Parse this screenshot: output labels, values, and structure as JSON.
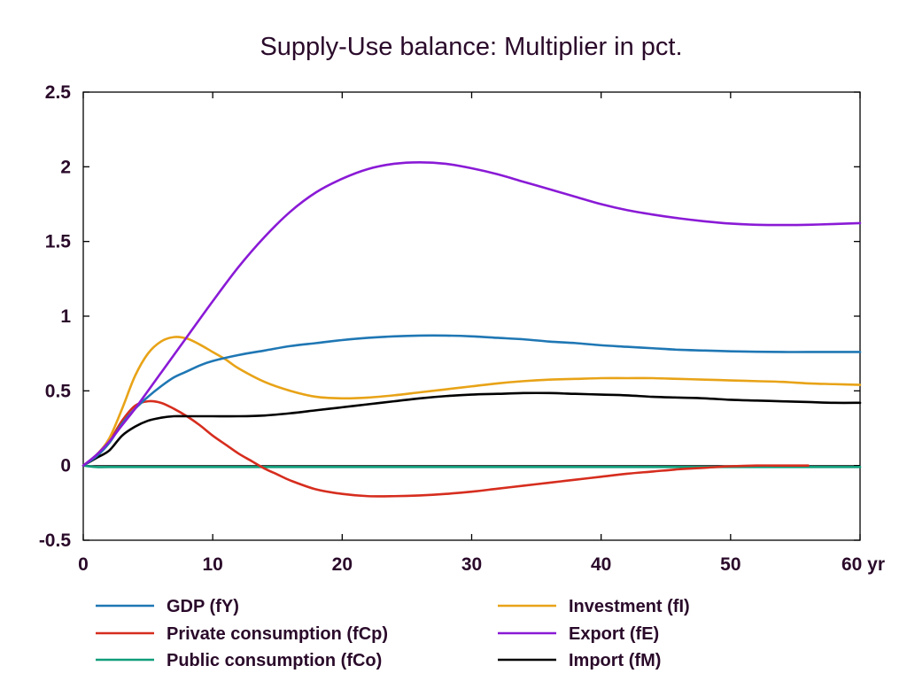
{
  "chart_data": {
    "type": "line",
    "title": "Supply-Use balance: Multiplier in pct.",
    "xlabel": "",
    "ylabel": "",
    "x_unit_label": "yr",
    "xlim": [
      0,
      60
    ],
    "ylim": [
      -0.5,
      2.5
    ],
    "x_ticks": [
      0,
      10,
      20,
      30,
      40,
      50,
      60
    ],
    "x_tick_labels": [
      "0",
      "10",
      "20",
      "30",
      "40",
      "50",
      "60 yr"
    ],
    "y_ticks": [
      -0.5,
      0,
      0.5,
      1,
      1.5,
      2,
      2.5
    ],
    "y_tick_labels": [
      "-0.5",
      "0",
      "0.5",
      "1",
      "1.5",
      "2",
      "2.5"
    ],
    "grid": false,
    "legend_position": "bottom",
    "series": [
      {
        "name": "GDP (fY)",
        "color": "#1f77b4",
        "x": [
          0,
          1,
          2,
          3,
          4,
          5,
          6,
          7,
          8,
          9,
          10,
          12,
          14,
          16,
          18,
          20,
          22,
          24,
          26,
          28,
          30,
          32,
          34,
          36,
          38,
          40,
          42,
          44,
          46,
          48,
          50,
          52,
          54,
          56,
          58,
          60
        ],
        "y": [
          0,
          0.06,
          0.15,
          0.28,
          0.38,
          0.46,
          0.53,
          0.59,
          0.63,
          0.67,
          0.7,
          0.74,
          0.77,
          0.8,
          0.82,
          0.84,
          0.855,
          0.865,
          0.87,
          0.87,
          0.865,
          0.855,
          0.845,
          0.83,
          0.82,
          0.805,
          0.795,
          0.785,
          0.775,
          0.77,
          0.765,
          0.762,
          0.76,
          0.76,
          0.76,
          0.76
        ]
      },
      {
        "name": "Investment (fI)",
        "color": "#e8a317",
        "x": [
          0,
          1,
          2,
          3,
          4,
          5,
          6,
          7,
          8,
          9,
          10,
          11,
          12,
          14,
          16,
          18,
          20,
          22,
          24,
          26,
          28,
          30,
          32,
          34,
          36,
          38,
          40,
          42,
          44,
          46,
          48,
          50,
          52,
          54,
          56,
          58,
          60
        ],
        "y": [
          0,
          0.07,
          0.18,
          0.38,
          0.6,
          0.75,
          0.83,
          0.86,
          0.85,
          0.81,
          0.76,
          0.71,
          0.65,
          0.56,
          0.5,
          0.46,
          0.45,
          0.455,
          0.47,
          0.49,
          0.51,
          0.53,
          0.55,
          0.565,
          0.575,
          0.58,
          0.585,
          0.585,
          0.585,
          0.58,
          0.575,
          0.57,
          0.565,
          0.56,
          0.55,
          0.545,
          0.54
        ]
      },
      {
        "name": "Private consumption (fCp)",
        "color": "#d62d1e",
        "x": [
          0,
          1,
          2,
          3,
          4,
          5,
          6,
          7,
          8,
          9,
          10,
          11,
          12,
          13,
          14,
          15,
          16,
          18,
          20,
          22,
          24,
          26,
          28,
          30,
          32,
          34,
          36,
          38,
          40,
          42,
          44,
          46,
          48,
          50,
          52,
          54,
          56
        ],
        "y": [
          0,
          0.06,
          0.16,
          0.3,
          0.4,
          0.43,
          0.42,
          0.38,
          0.33,
          0.27,
          0.2,
          0.14,
          0.08,
          0.03,
          -0.02,
          -0.06,
          -0.1,
          -0.16,
          -0.19,
          -0.205,
          -0.205,
          -0.2,
          -0.19,
          -0.175,
          -0.155,
          -0.135,
          -0.115,
          -0.095,
          -0.075,
          -0.055,
          -0.04,
          -0.025,
          -0.015,
          -0.005,
          0,
          0,
          0
        ]
      },
      {
        "name": "Export (fE)",
        "color": "#8a1ad6",
        "x": [
          0,
          1,
          2,
          3,
          4,
          5,
          6,
          7,
          8,
          10,
          12,
          14,
          16,
          18,
          20,
          22,
          24,
          26,
          28,
          30,
          32,
          34,
          36,
          38,
          40,
          42,
          44,
          46,
          48,
          50,
          52,
          54,
          56,
          58,
          60
        ],
        "y": [
          0,
          0.07,
          0.16,
          0.27,
          0.38,
          0.5,
          0.62,
          0.74,
          0.86,
          1.1,
          1.33,
          1.53,
          1.7,
          1.83,
          1.92,
          1.985,
          2.02,
          2.03,
          2.02,
          1.99,
          1.95,
          1.9,
          1.85,
          1.8,
          1.75,
          1.71,
          1.68,
          1.655,
          1.635,
          1.62,
          1.612,
          1.61,
          1.612,
          1.617,
          1.623
        ]
      },
      {
        "name": "Public consumption (fCo)",
        "color": "#0f9e7a",
        "x": [
          0,
          1,
          2,
          5,
          10,
          20,
          30,
          40,
          50,
          60
        ],
        "y": [
          0,
          -0.01,
          -0.01,
          -0.01,
          -0.01,
          -0.01,
          -0.01,
          -0.01,
          -0.01,
          -0.01
        ]
      },
      {
        "name": "Import (fM)",
        "color": "#000000",
        "x": [
          0,
          1,
          2,
          3,
          4,
          5,
          6,
          7,
          8,
          9,
          10,
          12,
          14,
          16,
          18,
          20,
          22,
          24,
          26,
          28,
          30,
          32,
          34,
          36,
          38,
          40,
          42,
          44,
          46,
          48,
          50,
          52,
          54,
          56,
          58,
          60
        ],
        "y": [
          0,
          0.05,
          0.1,
          0.2,
          0.26,
          0.3,
          0.32,
          0.33,
          0.33,
          0.33,
          0.33,
          0.33,
          0.335,
          0.35,
          0.37,
          0.39,
          0.41,
          0.43,
          0.45,
          0.465,
          0.475,
          0.48,
          0.485,
          0.485,
          0.48,
          0.475,
          0.47,
          0.46,
          0.455,
          0.45,
          0.44,
          0.435,
          0.43,
          0.425,
          0.42,
          0.42
        ]
      }
    ],
    "legend_order": [
      "GDP (fY)",
      "Investment (fI)",
      "Private consumption (fCp)",
      "Export (fE)",
      "Public consumption (fCo)",
      "Import (fM)"
    ]
  }
}
